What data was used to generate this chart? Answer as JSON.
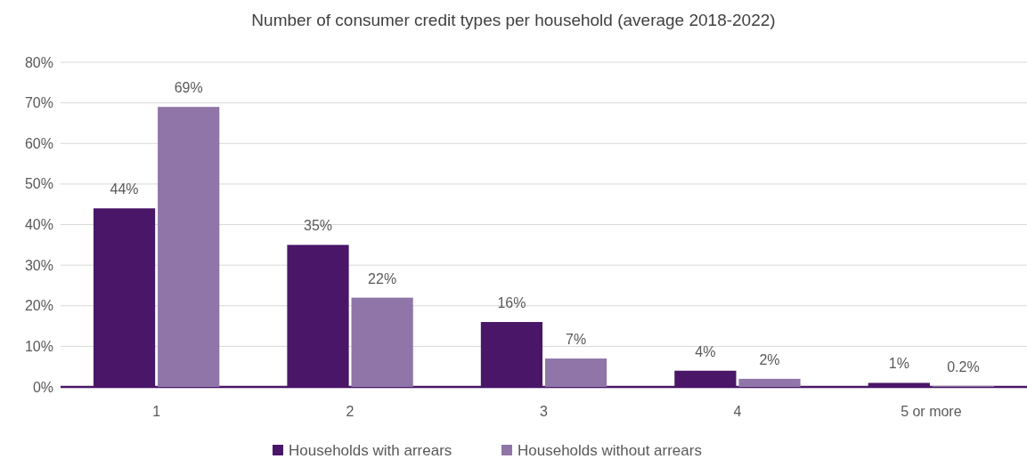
{
  "chart_data": {
    "type": "bar",
    "title": "Number of consumer credit types per household (average 2018-2022)",
    "categories": [
      "1",
      "2",
      "3",
      "4",
      "5 or more"
    ],
    "series": [
      {
        "name": "Households with arrears",
        "color": "#4a1668",
        "values": [
          44,
          35,
          16,
          4,
          1
        ]
      },
      {
        "name": "Households without arrears",
        "color": "#8f75a8",
        "values": [
          69,
          22,
          7,
          2,
          0.2
        ]
      }
    ],
    "ylim": [
      0,
      80
    ],
    "yticks": [
      {
        "value": 0,
        "label": "0%"
      },
      {
        "value": 10,
        "label": "10%"
      },
      {
        "value": 20,
        "label": "20%"
      },
      {
        "value": 30,
        "label": "30%"
      },
      {
        "value": 40,
        "label": "40%"
      },
      {
        "value": 50,
        "label": "50%"
      },
      {
        "value": 60,
        "label": "60%"
      },
      {
        "value": 70,
        "label": "70%"
      },
      {
        "value": 80,
        "label": "80%"
      }
    ],
    "value_labels": [
      [
        "44%",
        "35%",
        "16%",
        "4%",
        "1%"
      ],
      [
        "69%",
        "22%",
        "7%",
        "2%",
        "0.2%"
      ]
    ],
    "grid": "y",
    "legend": "bottom"
  }
}
